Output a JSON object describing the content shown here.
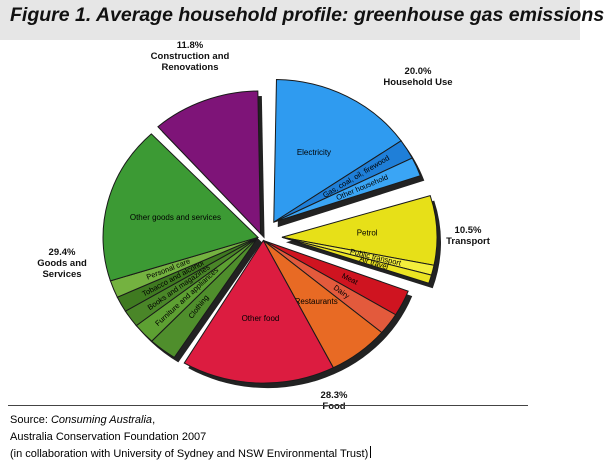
{
  "title": "Figure 1. Average household profile: greenhouse gas emissions",
  "chart_data": {
    "type": "pie",
    "title": "Figure 1. Average household profile: greenhouse gas emissions",
    "groups": [
      {
        "name": "Household Use",
        "percent_label": "20.0%",
        "value": 20.0,
        "slices": [
          {
            "label": "Electricity",
            "value": 15.5,
            "color": "#2f9bf0"
          },
          {
            "label": "Gas, coal, oil, firewood",
            "value": 2.3,
            "color": "#1f7fd8"
          },
          {
            "label": "Other household",
            "value": 2.2,
            "color": "#3aa5f5"
          }
        ]
      },
      {
        "name": "Transport",
        "percent_label": "10.5%",
        "value": 10.5,
        "slices": [
          {
            "label": "Petrol",
            "value": 8.3,
            "color": "#e7e018"
          },
          {
            "label": "Public transport",
            "value": 1.2,
            "color": "#f3ee3c"
          },
          {
            "label": "Air travel",
            "value": 1.0,
            "color": "#ece422"
          }
        ]
      },
      {
        "name": "Food",
        "percent_label": "28.3%",
        "value": 28.3,
        "slices": [
          {
            "label": "Meat",
            "value": 3.0,
            "color": "#cf1420"
          },
          {
            "label": "Dairy",
            "value": 2.5,
            "color": "#e35a3c"
          },
          {
            "label": "Restaurants",
            "value": 6.5,
            "color": "#e86a24"
          },
          {
            "label": "Other food",
            "value": 16.3,
            "color": "#dc1c40"
          }
        ]
      },
      {
        "name": "Goods and Services",
        "percent_label": "29.4%",
        "value": 29.4,
        "slices": [
          {
            "label": "Clothing",
            "value": 3.0,
            "color": "#4f8e2c"
          },
          {
            "label": "Furniture and appliances",
            "value": 2.4,
            "color": "#5da032"
          },
          {
            "label": "Books and magazines",
            "value": 2.0,
            "color": "#4a8628"
          },
          {
            "label": "Tobacco and alcohol",
            "value": 1.8,
            "color": "#3f7a20"
          },
          {
            "label": "Personal care",
            "value": 2.0,
            "color": "#74b240"
          },
          {
            "label": "Other goods and services",
            "value": 18.2,
            "color": "#3c9a34"
          }
        ]
      },
      {
        "name": "Construction and Renovations",
        "percent_label": "11.8%",
        "value": 11.8,
        "slices": [
          {
            "label": "",
            "value": 11.8,
            "color": "#7e1478"
          }
        ]
      }
    ]
  },
  "source": {
    "line1_prefix": "Source: ",
    "line1_title": "Consuming Australia",
    "line1_suffix": ",",
    "line2": "Australia Conservation Foundation 2007",
    "line3": "(in collaboration with University of Sydney and NSW Environmental Trust)"
  }
}
